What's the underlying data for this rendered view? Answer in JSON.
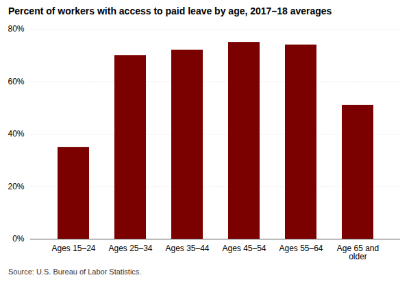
{
  "chart_data": {
    "type": "bar",
    "title": "Percent of workers with access to paid leave by age, 2017–18 averages",
    "categories": [
      "Ages 15–24",
      "Ages 25–34",
      "Ages 35–44",
      "Ages 45–54",
      "Ages 55–64",
      "Age 65 and\nolder"
    ],
    "values": [
      35,
      70,
      72,
      75,
      74,
      51
    ],
    "color": "#7b0000",
    "ylim": [
      0,
      80
    ],
    "yticks": [
      {
        "value": 0,
        "label": "0%"
      },
      {
        "value": 20,
        "label": "20%"
      },
      {
        "value": 40,
        "label": "40%"
      },
      {
        "value": 60,
        "label": "60%"
      },
      {
        "value": 80,
        "label": "80%"
      }
    ],
    "grid": true,
    "source": "Source: U.S. Bureau of Labor Statistics."
  }
}
